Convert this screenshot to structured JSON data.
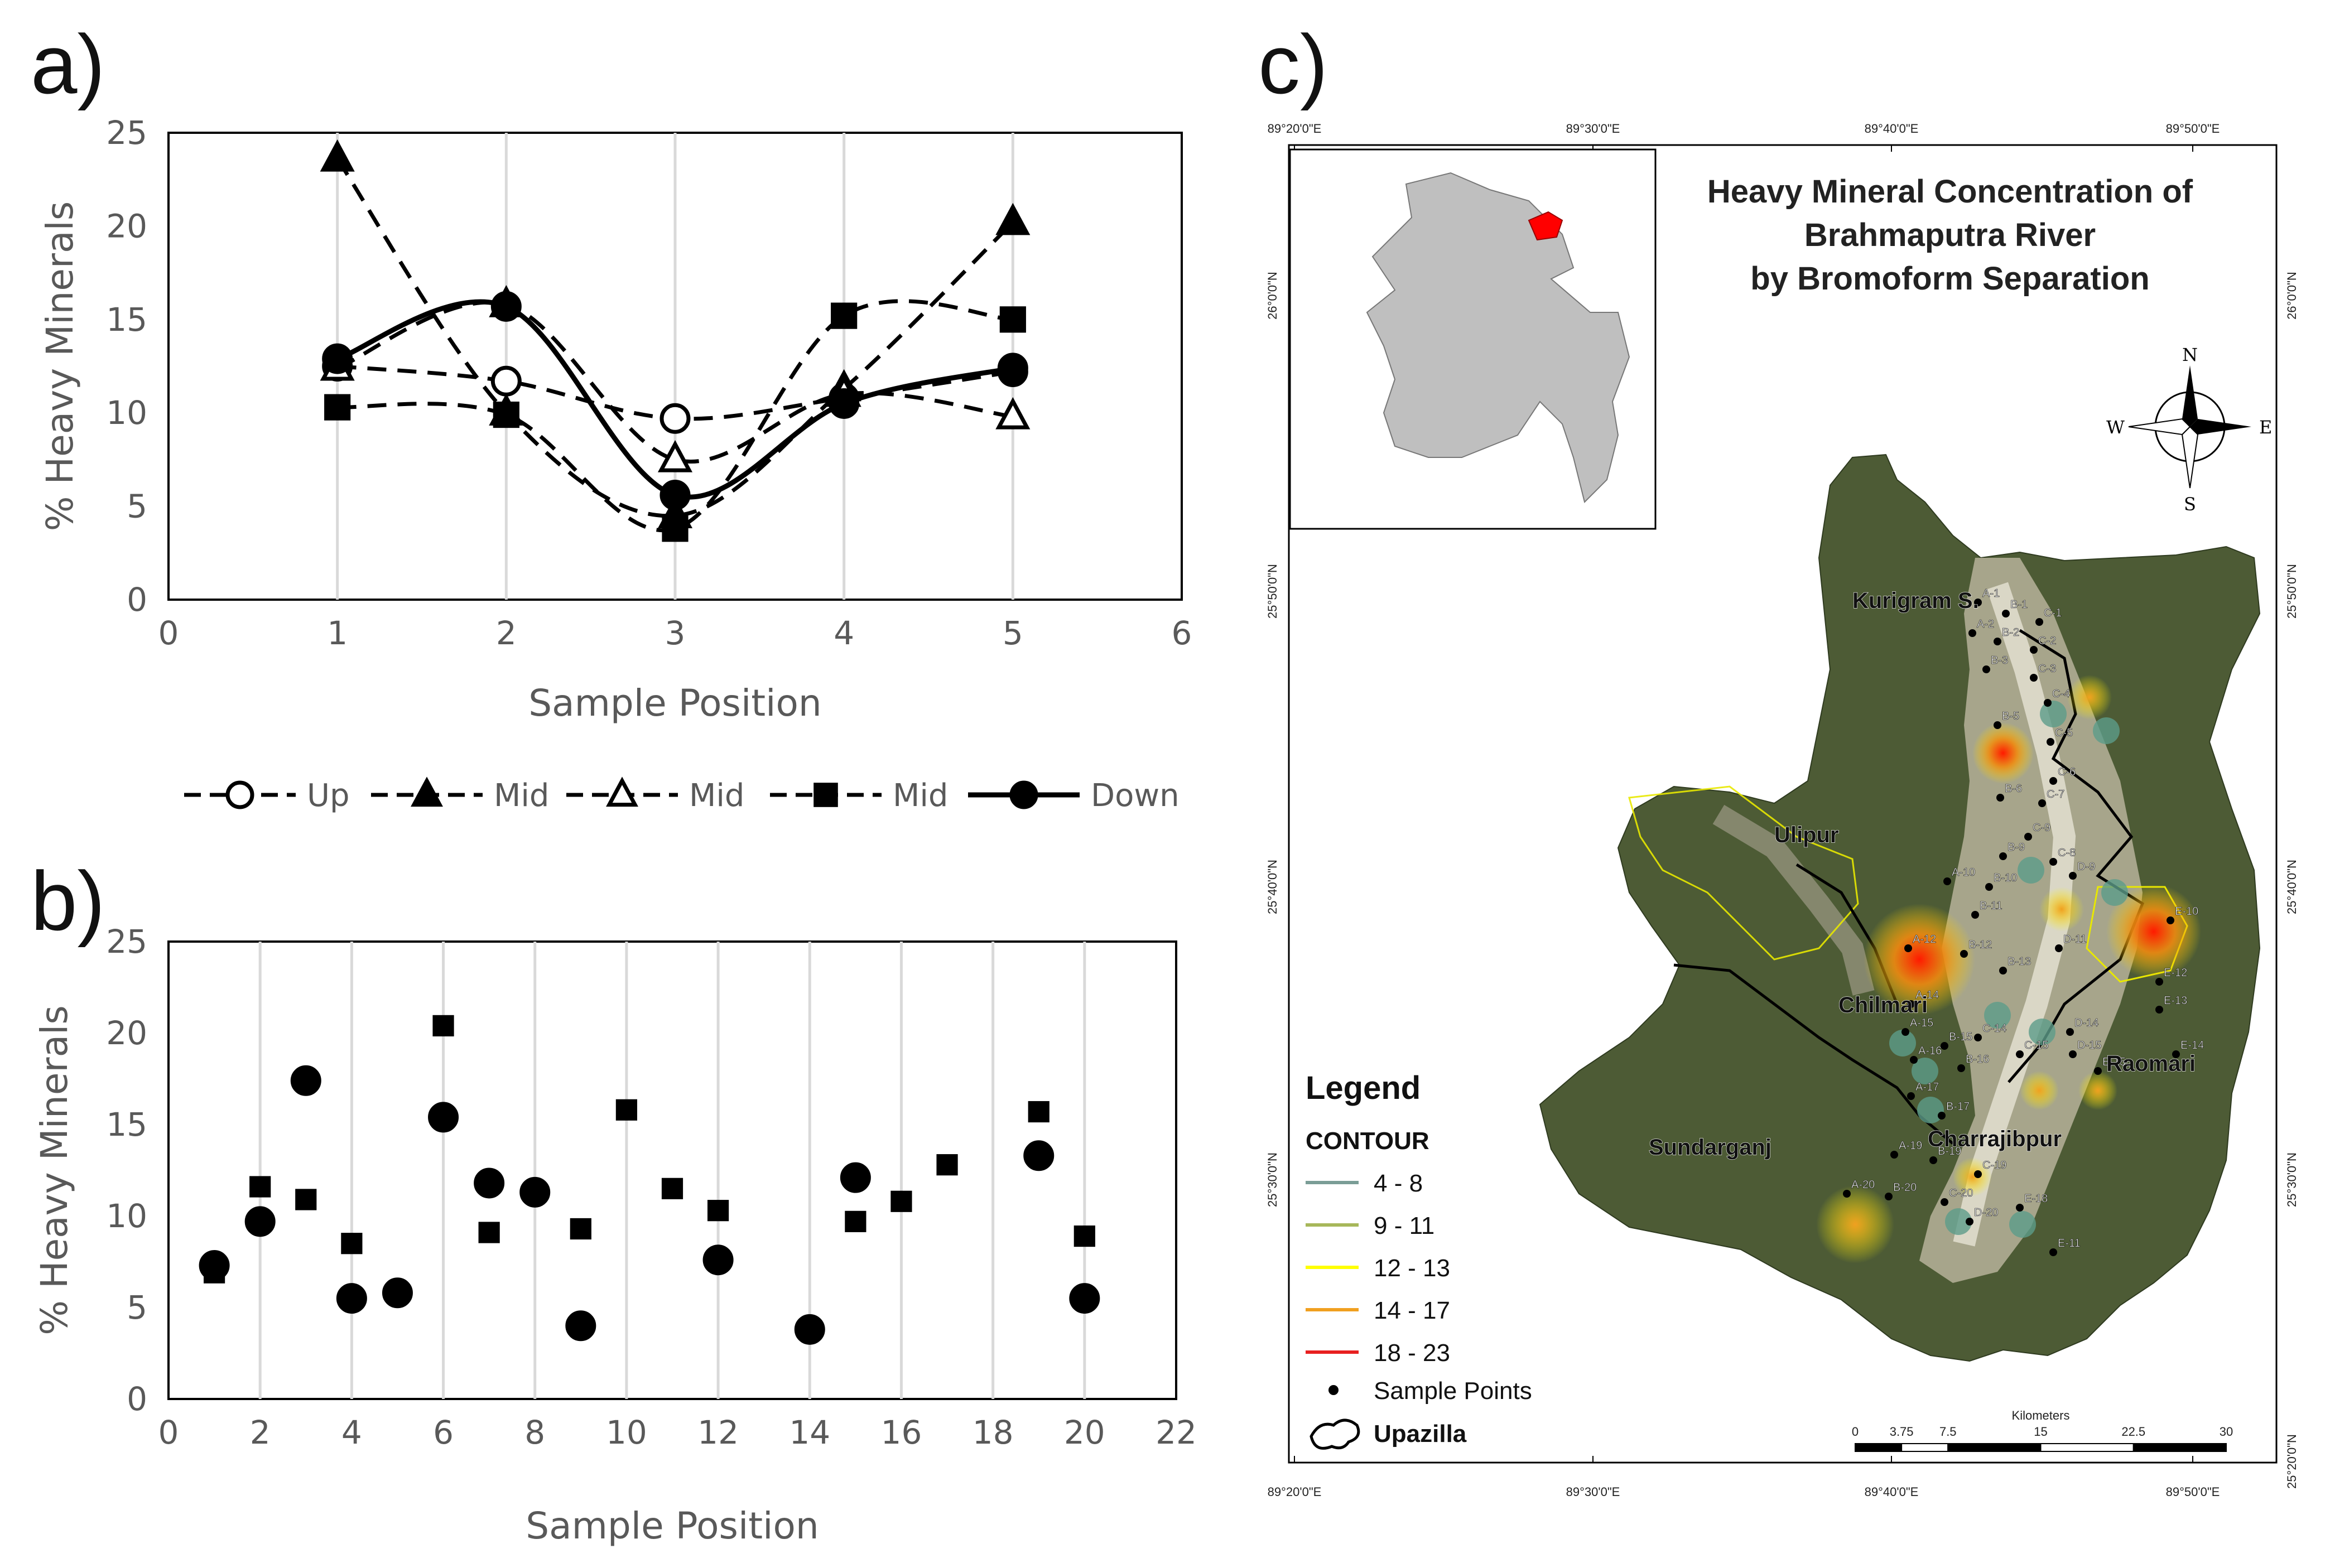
{
  "panels": {
    "a": {
      "label": "a)"
    },
    "b": {
      "label": "b)"
    },
    "c": {
      "label": "c)"
    }
  },
  "chart_data": [
    {
      "id": "a",
      "type": "line",
      "xlabel": "Sample Position",
      "ylabel": "% Heavy Minerals",
      "xlim": [
        0,
        6
      ],
      "ylim": [
        0,
        25
      ],
      "xticks": [
        "0",
        "1",
        "2",
        "3",
        "4",
        "5",
        "6"
      ],
      "yticks": [
        "0",
        "5",
        "10",
        "15",
        "20",
        "25"
      ],
      "grid": "vertical",
      "legend_position": "bottom",
      "series": [
        {
          "name": "Up",
          "marker": "circle-open",
          "dash": "dashed",
          "x": [
            1,
            2,
            3,
            4,
            5
          ],
          "values": [
            12.5,
            11.7,
            9.7,
            10.8,
            12.2
          ]
        },
        {
          "name": "Mid",
          "marker": "triangle",
          "dash": "dashed",
          "x": [
            1,
            2,
            3,
            4,
            5
          ],
          "values": [
            23.6,
            10.0,
            4.5,
            11.3,
            20.2
          ]
        },
        {
          "name": "Mid",
          "marker": "triangle-open",
          "dash": "dashed",
          "x": [
            1,
            2,
            3,
            4,
            5
          ],
          "values": [
            12.4,
            15.8,
            7.5,
            11.0,
            9.8
          ]
        },
        {
          "name": "Mid",
          "marker": "square",
          "dash": "dashed",
          "x": [
            1,
            2,
            3,
            4,
            5
          ],
          "values": [
            10.3,
            9.9,
            3.8,
            15.2,
            15.0
          ]
        },
        {
          "name": "Down",
          "marker": "circle",
          "dash": "solid",
          "x": [
            1,
            2,
            3,
            4,
            5
          ],
          "values": [
            12.9,
            15.7,
            5.6,
            10.5,
            12.4
          ]
        }
      ]
    },
    {
      "id": "b",
      "type": "scatter",
      "xlabel": "Sample Position",
      "ylabel": "% Heavy Minerals",
      "xlim": [
        0,
        22
      ],
      "ylim": [
        0,
        25
      ],
      "xticks": [
        "0",
        "2",
        "4",
        "6",
        "8",
        "10",
        "12",
        "14",
        "16",
        "18",
        "20",
        "22"
      ],
      "yticks": [
        "0",
        "5",
        "10",
        "15",
        "20",
        "25"
      ],
      "grid": "vertical",
      "series": [
        {
          "name": "circle",
          "marker": "circle",
          "x": [
            1,
            2,
            3,
            4,
            5,
            6,
            7,
            8,
            9,
            12,
            14,
            15,
            19,
            20
          ],
          "values": [
            7.3,
            9.7,
            17.4,
            5.5,
            5.8,
            15.4,
            11.8,
            11.3,
            4.0,
            7.6,
            3.8,
            12.1,
            13.3,
            5.5
          ]
        },
        {
          "name": "square",
          "marker": "square",
          "x": [
            1,
            2,
            3,
            4,
            6,
            7,
            9,
            10,
            11,
            12,
            15,
            16,
            17,
            19,
            20
          ],
          "values": [
            6.9,
            11.6,
            10.9,
            8.5,
            20.4,
            9.1,
            9.3,
            15.8,
            11.5,
            10.3,
            9.7,
            10.8,
            12.8,
            15.7,
            8.9
          ]
        }
      ]
    }
  ],
  "map": {
    "title_lines": [
      "Heavy Mineral Concentration of",
      "Brahmaputra River",
      "by Bromoform Separation"
    ],
    "top_ticks": [
      "89°20'0\"E",
      "89°30'0\"E",
      "89°40'0\"E",
      "89°50'0\"E"
    ],
    "bottom_ticks": [
      "89°20'0\"E",
      "89°30'0\"E",
      "89°40'0\"E",
      "89°50'0\"E"
    ],
    "left_ticks": [
      "26°0'0\"N",
      "25°50'0\"N",
      "25°40'0\"N",
      "25°30'0\"N"
    ],
    "right_ticks": [
      "26°0'0\"N",
      "25°50'0\"N",
      "25°40'0\"N",
      "25°30'0\"N",
      "25°20'0\"N"
    ],
    "upazilas": [
      "Kurigram S.",
      "Ulipur",
      "Chilmari",
      "Raomari",
      "Sundarganj",
      "Charrajibpur"
    ],
    "compass": {
      "n": "N",
      "s": "S",
      "e": "E",
      "w": "W"
    },
    "legend": {
      "title": "Legend",
      "contour_title": "CONTOUR",
      "items": [
        {
          "label": "4 - 8",
          "color": "#7a9d96"
        },
        {
          "label": "9 - 11",
          "color": "#a7b75a"
        },
        {
          "label": "12 - 13",
          "color": "#ffff00"
        },
        {
          "label": "14 - 17",
          "color": "#f0a020"
        },
        {
          "label": "18 - 23",
          "color": "#e82020"
        }
      ],
      "sample_points": "Sample Points",
      "upazilla": "Upazilla"
    },
    "scale": {
      "unit": "Kilometers",
      "ticks": [
        "0",
        "3.75",
        "7.5",
        "15",
        "22.5",
        "30"
      ]
    },
    "sample_labels": [
      "A-1",
      "B-1",
      "C-1",
      "A-2",
      "B-2",
      "C-2",
      "B-3",
      "C-3",
      "C-4",
      "B-5",
      "C-5",
      "C-6",
      "B-6",
      "C-7",
      "C-9",
      "B-9",
      "C-8",
      "D-9",
      "A-10",
      "B-10",
      "E-10",
      "B-11",
      "A-12",
      "B-12",
      "D-11",
      "B-13",
      "E-12",
      "A-14",
      "E-13",
      "D-14",
      "A-15",
      "B-15",
      "C-14",
      "D-15",
      "C-15",
      "E-14",
      "A-16",
      "B-16",
      "E-15",
      "A-17",
      "B-17",
      "A-19",
      "B-19",
      "C-19",
      "A-20",
      "B-20",
      "C-20",
      "D-20",
      "E-18",
      "E-11"
    ]
  }
}
